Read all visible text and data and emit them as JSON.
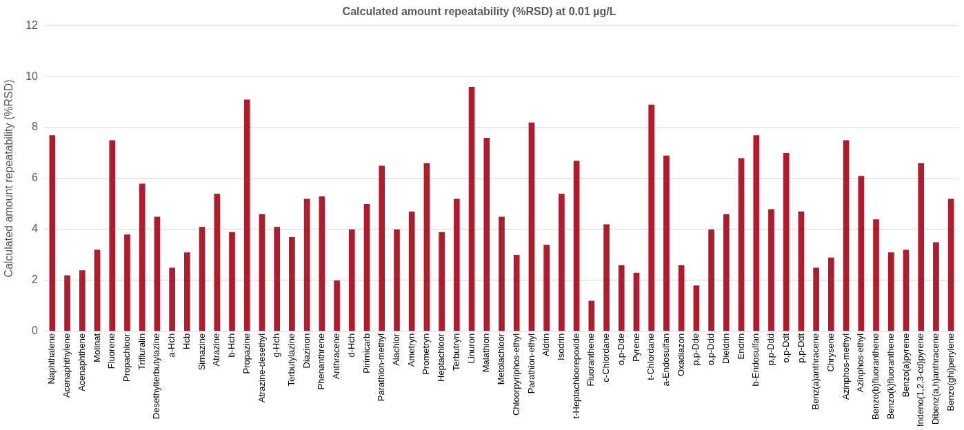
{
  "chart_data": {
    "type": "bar",
    "title": "Calculated amount repeatability (%RSD) at 0.01 µg/L",
    "ylabel": "Calculated amount repeatability (%RSD)",
    "categories": [
      "Naphthalene",
      "Acenaphthylene",
      "Acenaphthene",
      "Molinat",
      "Fluorene",
      "Propachloor",
      "Trifluralin",
      "Desethylterbutylazine",
      "a-Hch",
      "Hcb",
      "Simazine",
      "Atrazine",
      "b-Hch",
      "Propazine",
      "Atrazine-desethyl",
      "g-Hch",
      "Terbutylazine",
      "Diazinon",
      "Phenanthrene",
      "Anthracene",
      "d-Hch",
      "Pirimicarb",
      "Parathion-methyl",
      "Alachlor",
      "Ametryn",
      "Prometryn",
      "Heptachloor",
      "Terbutryn",
      "Linuron",
      "Malathion",
      "Metolachloor",
      "Chloorpyriphos-ethyl",
      "Parathion-ethyl",
      "Aldrin",
      "Isodrin",
      "t-Heptachloorepoxide",
      "Fluoranthene",
      "c-Chlordane",
      "o,p-Dde",
      "Pyrene",
      "t-Chlordane",
      "a-Endosulfan",
      "Oxadiazon",
      "p,p-Dde",
      "o,p-Ddd",
      "Dieldrin",
      "Endrin",
      "b-Endosulfan",
      "p,p-Ddd",
      "o,p-Ddt",
      "p,p-Ddt",
      "Benz(a)anthracene",
      "Chrysene",
      "Azinphos-methyl",
      "Azinphos-ethyl",
      "Benzo(b)fluoranthene",
      "Benzo(k)fluoranthene",
      "Benzo(a)pyrene",
      "Indeno(1,2,3-cd)pyrene",
      "Dibenz(a,h)anthracene",
      "Benzo(ghi)perylene"
    ],
    "values": [
      7.7,
      2.2,
      2.4,
      3.2,
      7.5,
      3.8,
      5.8,
      4.5,
      2.5,
      3.1,
      4.1,
      5.4,
      3.9,
      9.1,
      4.6,
      4.1,
      3.7,
      5.2,
      5.3,
      2.0,
      4.0,
      5.0,
      6.5,
      4.0,
      4.7,
      6.6,
      3.9,
      5.2,
      9.6,
      7.6,
      4.5,
      3.0,
      8.2,
      3.4,
      5.4,
      6.7,
      1.2,
      4.2,
      2.6,
      2.3,
      8.9,
      6.9,
      2.6,
      1.8,
      4.0,
      4.6,
      6.8,
      7.7,
      4.8,
      7.0,
      4.7,
      2.5,
      2.9,
      7.5,
      6.1,
      4.4,
      3.1,
      3.2,
      6.6,
      3.5,
      5.2
    ],
    "color": "#b01c2e",
    "ylim": [
      0,
      12
    ],
    "yticks": [
      0,
      2,
      4,
      6,
      8,
      10,
      12
    ],
    "grid": "y",
    "legend": false
  }
}
